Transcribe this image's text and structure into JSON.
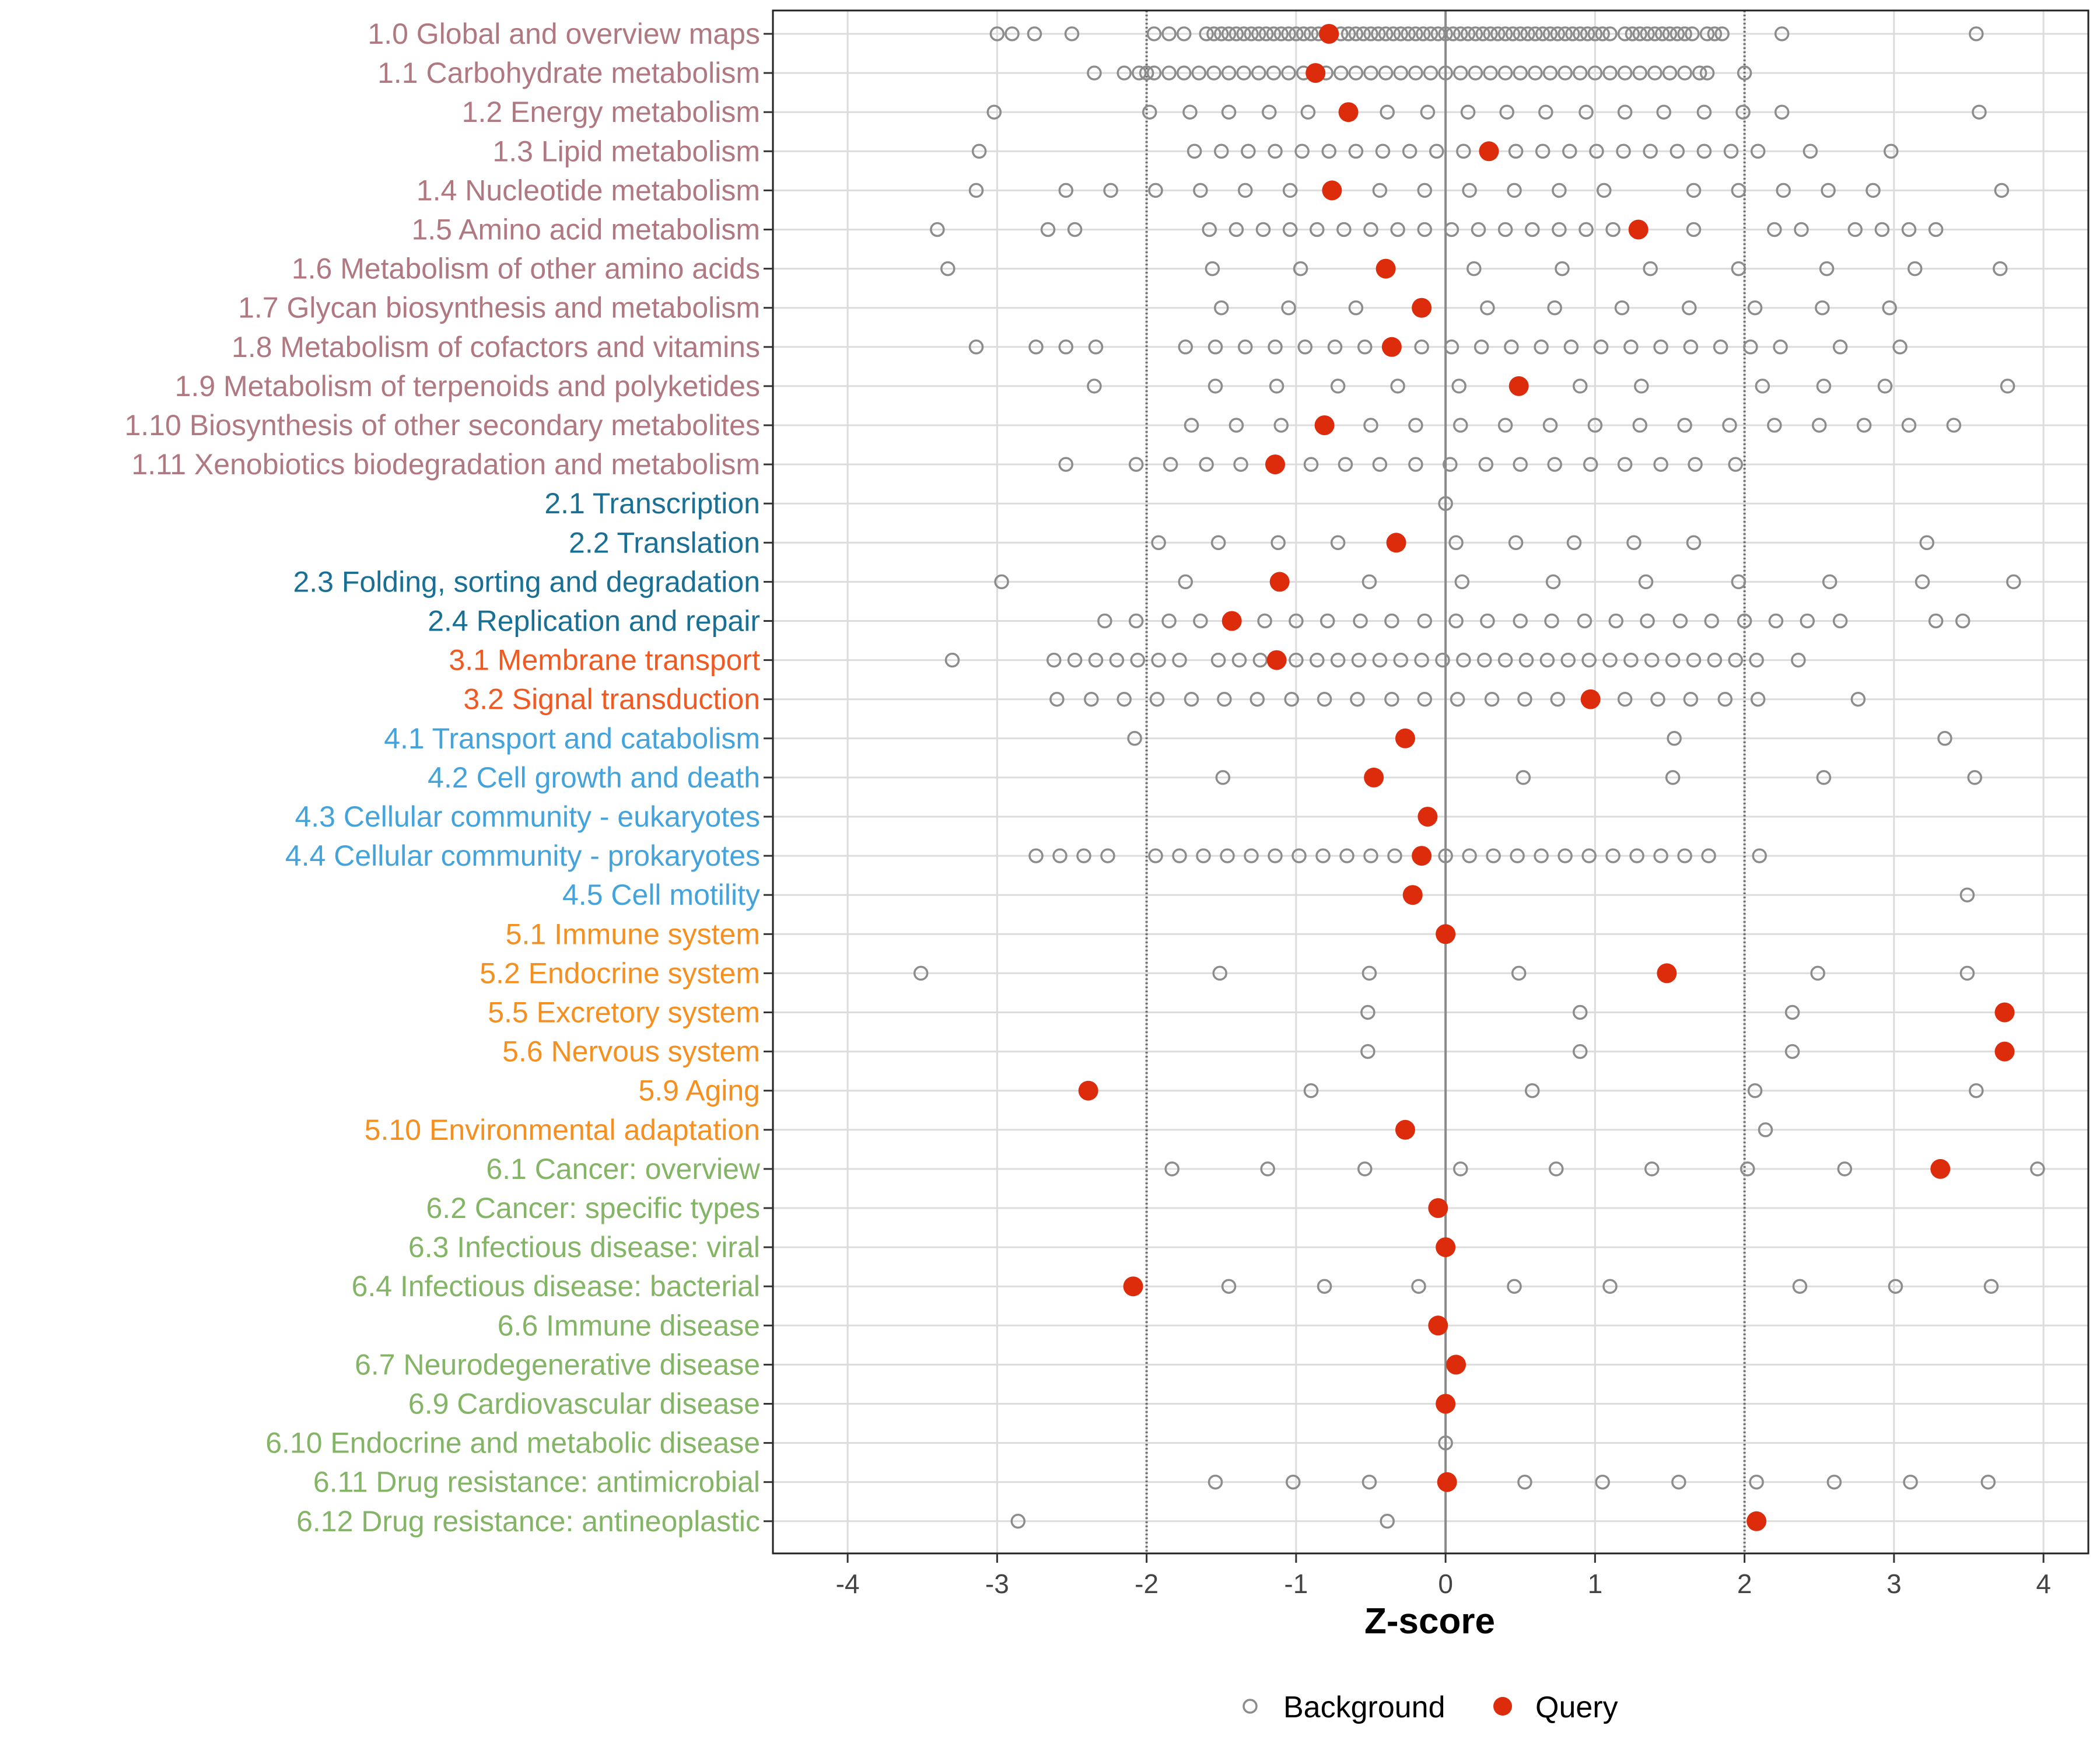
{
  "chart_data": {
    "type": "scatter",
    "xlabel": "Z-score",
    "xlim": [
      -4.5,
      4.3
    ],
    "xticks": [
      -4,
      -3,
      -2,
      -1,
      0,
      1,
      2,
      3,
      4
    ],
    "xtick_labels": [
      "-4",
      "-3",
      "-2",
      "-1",
      "0",
      "1",
      "2",
      "3",
      "4"
    ],
    "reference_lines": [
      -2,
      0,
      2
    ],
    "legend": {
      "position": "bottom",
      "items": [
        {
          "name": "Background",
          "marker": "open-circle",
          "color": "#8c8c8c"
        },
        {
          "name": "Query",
          "marker": "filled-circle",
          "color": "#dd2c0c"
        }
      ]
    },
    "group_colors": {
      "1": "#b07880",
      "2": "#1a6f94",
      "3": "#f05a22",
      "4": "#45a3dc",
      "5": "#f58f1f",
      "6": "#84b466"
    },
    "categories": [
      {
        "label": "1.0 Global and overview maps",
        "group": "1",
        "query": -0.78,
        "background": [
          -3.0,
          -2.9,
          -2.75,
          -2.5,
          -1.95,
          -1.85,
          -1.75,
          -1.6,
          -1.55,
          -1.5,
          -1.45,
          -1.4,
          -1.35,
          -1.3,
          -1.25,
          -1.2,
          -1.15,
          -1.1,
          -1.05,
          -1.0,
          -0.95,
          -0.9,
          -0.85,
          -0.8,
          -0.7,
          -0.65,
          -0.6,
          -0.55,
          -0.5,
          -0.45,
          -0.4,
          -0.35,
          -0.3,
          -0.25,
          -0.2,
          -0.15,
          -0.1,
          -0.05,
          0.0,
          0.05,
          0.1,
          0.15,
          0.2,
          0.25,
          0.3,
          0.35,
          0.4,
          0.45,
          0.5,
          0.55,
          0.6,
          0.65,
          0.7,
          0.75,
          0.8,
          0.85,
          0.9,
          0.95,
          1.0,
          1.05,
          1.1,
          1.2,
          1.25,
          1.3,
          1.35,
          1.4,
          1.45,
          1.5,
          1.55,
          1.6,
          1.65,
          1.75,
          1.8,
          1.85,
          2.25,
          3.55
        ]
      },
      {
        "label": "1.1 Carbohydrate metabolism",
        "group": "1",
        "query": -0.87,
        "background": [
          -2.35,
          -2.15,
          -2.05,
          -2.0,
          -1.95,
          -1.85,
          -1.75,
          -1.65,
          -1.55,
          -1.45,
          -1.35,
          -1.25,
          -1.15,
          -1.05,
          -0.95,
          -0.8,
          -0.7,
          -0.6,
          -0.5,
          -0.4,
          -0.3,
          -0.2,
          -0.1,
          0.0,
          0.1,
          0.2,
          0.3,
          0.4,
          0.5,
          0.6,
          0.7,
          0.8,
          0.9,
          1.0,
          1.1,
          1.2,
          1.3,
          1.4,
          1.5,
          1.6,
          1.7,
          1.75,
          2.0
        ]
      },
      {
        "label": "1.2 Energy metabolism",
        "group": "1",
        "query": -0.65,
        "background": [
          -3.02,
          -1.98,
          -1.71,
          -1.45,
          -1.18,
          -0.92,
          -0.39,
          -0.12,
          0.15,
          0.41,
          0.67,
          0.94,
          1.2,
          1.46,
          1.73,
          1.99,
          2.25,
          3.57
        ]
      },
      {
        "label": "1.3 Lipid metabolism",
        "group": "1",
        "query": 0.29,
        "background": [
          -3.12,
          -1.68,
          -1.5,
          -1.32,
          -1.14,
          -0.96,
          -0.78,
          -0.6,
          -0.42,
          -0.24,
          -0.06,
          0.12,
          0.47,
          0.65,
          0.83,
          1.01,
          1.19,
          1.37,
          1.55,
          1.73,
          1.91,
          2.09,
          2.44,
          2.98
        ]
      },
      {
        "label": "1.4 Nucleotide metabolism",
        "group": "1",
        "query": -0.76,
        "background": [
          -3.14,
          -2.54,
          -2.24,
          -1.94,
          -1.64,
          -1.34,
          -1.04,
          -0.44,
          -0.14,
          0.16,
          0.46,
          0.76,
          1.06,
          1.66,
          1.96,
          2.26,
          2.56,
          2.86,
          3.72
        ]
      },
      {
        "label": "1.5 Amino acid metabolism",
        "group": "1",
        "query": 1.29,
        "background": [
          -3.4,
          -2.66,
          -2.48,
          -1.58,
          -1.4,
          -1.22,
          -1.04,
          -0.86,
          -0.68,
          -0.5,
          -0.32,
          -0.14,
          0.04,
          0.22,
          0.4,
          0.58,
          0.76,
          0.94,
          1.12,
          1.66,
          2.2,
          2.38,
          2.74,
          2.92,
          3.1,
          3.28
        ]
      },
      {
        "label": "1.6 Metabolism of other amino acids",
        "group": "1",
        "query": -0.4,
        "background": [
          -3.33,
          -1.56,
          -0.97,
          0.19,
          0.78,
          1.37,
          1.96,
          2.55,
          3.14,
          3.71
        ]
      },
      {
        "label": "1.7 Glycan biosynthesis and metabolism",
        "group": "1",
        "query": -0.16,
        "background": [
          -1.5,
          -1.05,
          -0.6,
          0.28,
          0.73,
          1.18,
          1.63,
          2.07,
          2.52,
          2.97
        ]
      },
      {
        "label": "1.8 Metabolism of cofactors and vitamins",
        "group": "1",
        "query": -0.36,
        "background": [
          -3.14,
          -2.74,
          -2.54,
          -2.34,
          -1.74,
          -1.54,
          -1.34,
          -1.14,
          -0.94,
          -0.74,
          -0.54,
          -0.16,
          0.04,
          0.24,
          0.44,
          0.64,
          0.84,
          1.04,
          1.24,
          1.44,
          1.64,
          1.84,
          2.04,
          2.24,
          2.64,
          3.04
        ]
      },
      {
        "label": "1.9 Metabolism of terpenoids and polyketides",
        "group": "1",
        "query": 0.49,
        "background": [
          -2.35,
          -1.54,
          -1.13,
          -0.72,
          -0.32,
          0.09,
          0.9,
          1.31,
          2.12,
          2.53,
          2.94,
          3.76
        ]
      },
      {
        "label": "1.10 Biosynthesis of other secondary metabolites",
        "group": "1",
        "query": -0.81,
        "background": [
          -1.7,
          -1.4,
          -1.1,
          -0.5,
          -0.2,
          0.1,
          0.4,
          0.7,
          1.0,
          1.3,
          1.6,
          1.9,
          2.2,
          2.5,
          2.8,
          3.1,
          3.4
        ]
      },
      {
        "label": "1.11 Xenobiotics biodegradation and metabolism",
        "group": "1",
        "query": -1.14,
        "background": [
          -2.54,
          -2.07,
          -1.84,
          -1.6,
          -1.37,
          -0.9,
          -0.67,
          -0.44,
          -0.2,
          0.03,
          0.27,
          0.5,
          0.73,
          0.97,
          1.2,
          1.44,
          1.67,
          1.94
        ]
      },
      {
        "label": "2.1 Transcription",
        "group": "2",
        "query": null,
        "background": [
          0.0
        ]
      },
      {
        "label": "2.2 Translation",
        "group": "2",
        "query": -0.33,
        "background": [
          -1.92,
          -1.52,
          -1.12,
          -0.72,
          0.07,
          0.47,
          0.86,
          1.26,
          1.66,
          3.22
        ]
      },
      {
        "label": "2.3 Folding, sorting and degradation",
        "group": "2",
        "query": -1.11,
        "background": [
          -2.97,
          -1.74,
          -0.51,
          0.11,
          0.72,
          1.34,
          1.96,
          2.57,
          3.19,
          3.8
        ]
      },
      {
        "label": "2.4 Replication and repair",
        "group": "2",
        "query": -1.43,
        "background": [
          -2.28,
          -2.07,
          -1.85,
          -1.64,
          -1.21,
          -1.0,
          -0.79,
          -0.57,
          -0.36,
          -0.14,
          0.07,
          0.28,
          0.5,
          0.71,
          0.93,
          1.14,
          1.35,
          1.57,
          1.78,
          2.0,
          2.21,
          2.42,
          2.64,
          3.28,
          3.46
        ]
      },
      {
        "label": "3.1 Membrane transport",
        "group": "3",
        "query": -1.13,
        "background": [
          -3.3,
          -2.62,
          -2.48,
          -2.34,
          -2.2,
          -2.06,
          -1.92,
          -1.78,
          -1.52,
          -1.38,
          -1.24,
          -1.0,
          -0.86,
          -0.72,
          -0.58,
          -0.44,
          -0.3,
          -0.16,
          -0.02,
          0.12,
          0.26,
          0.4,
          0.54,
          0.68,
          0.82,
          0.96,
          1.1,
          1.24,
          1.38,
          1.52,
          1.66,
          1.8,
          1.94,
          2.08,
          2.36
        ]
      },
      {
        "label": "3.2 Signal transduction",
        "group": "3",
        "query": 0.97,
        "background": [
          -2.6,
          -2.37,
          -2.15,
          -1.93,
          -1.7,
          -1.48,
          -1.26,
          -1.03,
          -0.81,
          -0.59,
          -0.36,
          -0.14,
          0.08,
          0.31,
          0.53,
          0.75,
          1.2,
          1.42,
          1.64,
          1.87,
          2.09,
          2.76
        ]
      },
      {
        "label": "4.1 Transport and catabolism",
        "group": "4",
        "query": -0.27,
        "background": [
          -2.08,
          1.53,
          3.34
        ]
      },
      {
        "label": "4.2 Cell growth and death",
        "group": "4",
        "query": -0.48,
        "background": [
          -1.49,
          0.52,
          1.52,
          2.53,
          3.54
        ]
      },
      {
        "label": "4.3 Cellular community - eukaryotes",
        "group": "4",
        "query": -0.12,
        "background": []
      },
      {
        "label": "4.4 Cellular community - prokaryotes",
        "group": "4",
        "query": -0.16,
        "background": [
          -2.74,
          -2.58,
          -2.42,
          -2.26,
          -1.94,
          -1.78,
          -1.62,
          -1.46,
          -1.3,
          -1.14,
          -0.98,
          -0.82,
          -0.66,
          -0.5,
          -0.34,
          0.0,
          0.16,
          0.32,
          0.48,
          0.64,
          0.8,
          0.96,
          1.12,
          1.28,
          1.44,
          1.6,
          1.76,
          2.1
        ]
      },
      {
        "label": "4.5 Cell motility",
        "group": "4",
        "query": -0.22,
        "background": [
          3.49
        ]
      },
      {
        "label": "5.1 Immune system",
        "group": "5",
        "query": 0.0,
        "background": []
      },
      {
        "label": "5.2 Endocrine system",
        "group": "5",
        "query": 1.48,
        "background": [
          -3.51,
          -1.51,
          -0.51,
          0.49,
          2.49,
          3.49
        ]
      },
      {
        "label": "5.5 Excretory system",
        "group": "5",
        "query": 3.74,
        "background": [
          -0.52,
          0.9,
          2.32
        ]
      },
      {
        "label": "5.6 Nervous system",
        "group": "5",
        "query": 3.74,
        "background": [
          -0.52,
          0.9,
          2.32
        ]
      },
      {
        "label": "5.9 Aging",
        "group": "5",
        "query": -2.39,
        "background": [
          -0.9,
          0.58,
          2.07,
          3.55
        ]
      },
      {
        "label": "5.10 Environmental adaptation",
        "group": "5",
        "query": -0.27,
        "background": [
          2.14
        ]
      },
      {
        "label": "6.1 Cancer: overview",
        "group": "6",
        "query": 3.31,
        "background": [
          -1.83,
          -1.19,
          -0.54,
          0.1,
          0.74,
          1.38,
          2.02,
          2.67,
          3.96
        ]
      },
      {
        "label": "6.2 Cancer: specific types",
        "group": "6",
        "query": -0.05,
        "background": []
      },
      {
        "label": "6.3 Infectious disease: viral",
        "group": "6",
        "query": 0.0,
        "background": []
      },
      {
        "label": "6.4 Infectious disease: bacterial",
        "group": "6",
        "query": -2.09,
        "background": [
          -1.45,
          -0.81,
          -0.18,
          0.46,
          1.1,
          2.37,
          3.01,
          3.65
        ]
      },
      {
        "label": "6.6 Immune disease",
        "group": "6",
        "query": -0.05,
        "background": []
      },
      {
        "label": "6.7 Neurodegenerative disease",
        "group": "6",
        "query": 0.07,
        "background": []
      },
      {
        "label": "6.9 Cardiovascular disease",
        "group": "6",
        "query": 0.0,
        "background": []
      },
      {
        "label": "6.10 Endocrine and metabolic disease",
        "group": "6",
        "query": null,
        "background": [
          0.0
        ]
      },
      {
        "label": "6.11 Drug resistance: antimicrobial",
        "group": "6",
        "query": 0.01,
        "background": [
          -1.54,
          -1.02,
          -0.51,
          0.53,
          1.05,
          1.56,
          2.08,
          2.6,
          3.11,
          3.63
        ]
      },
      {
        "label": "6.12 Drug resistance: antineoplastic",
        "group": "6",
        "query": 2.08,
        "background": [
          -2.86,
          -0.39
        ]
      }
    ]
  }
}
